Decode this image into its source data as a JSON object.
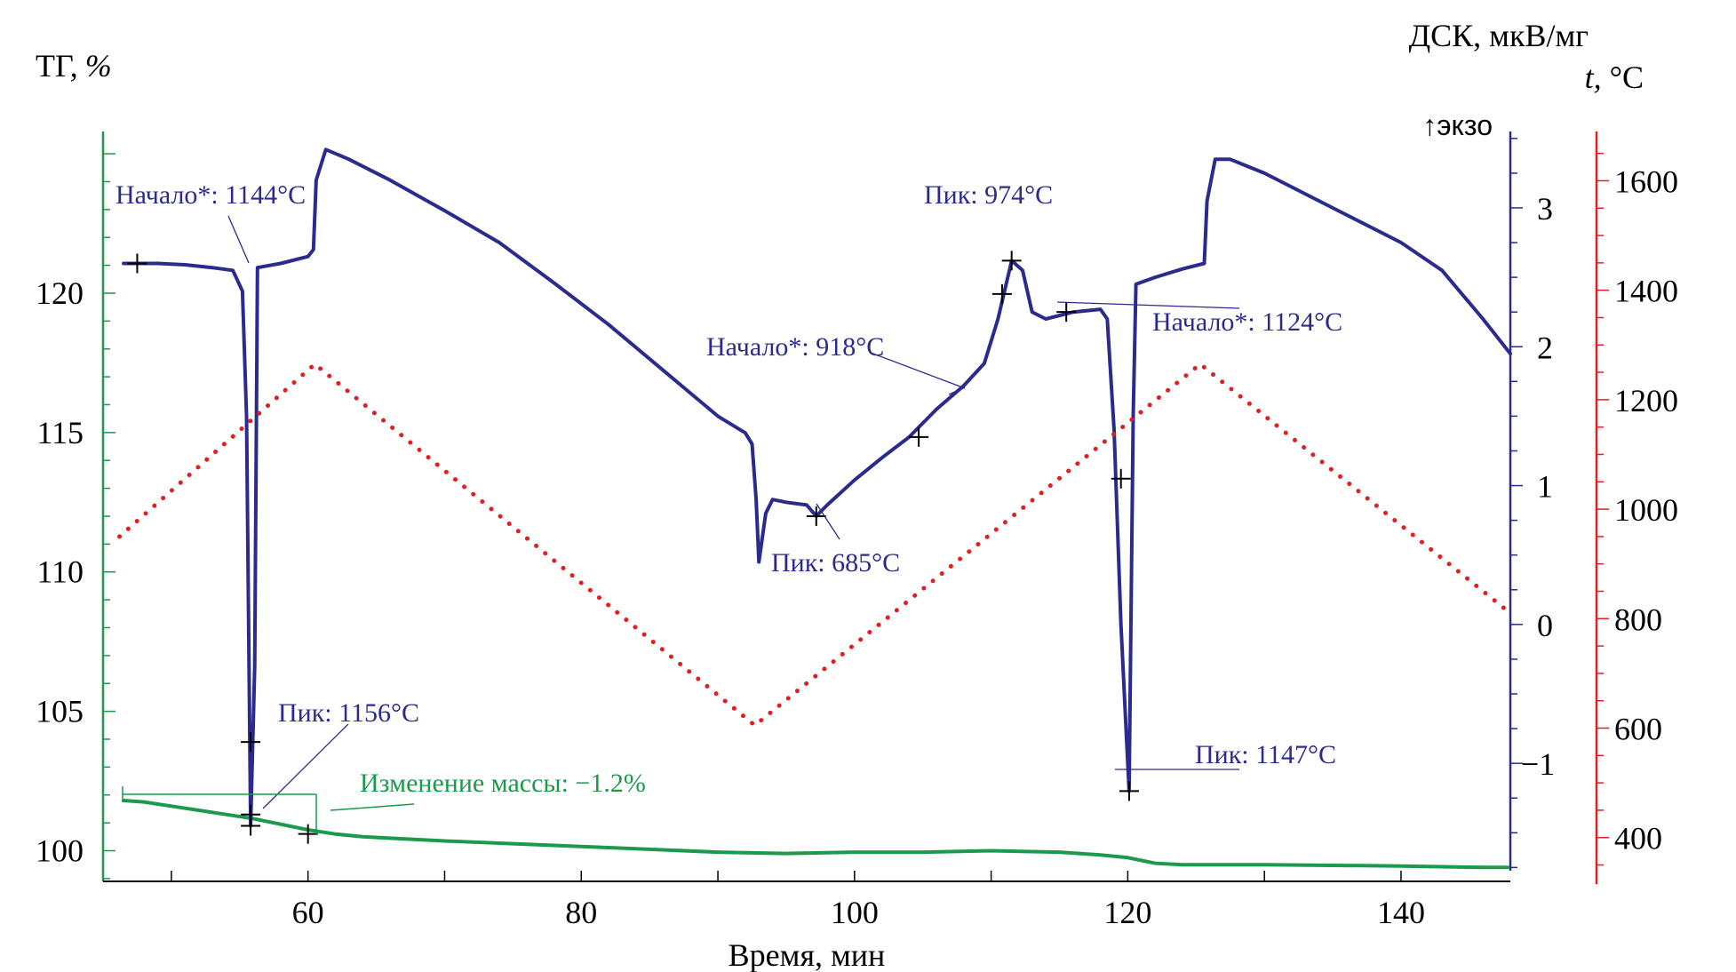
{
  "chart_data": {
    "type": "line",
    "x_axis": {
      "label": "Время, мин",
      "range": [
        45,
        148
      ],
      "ticks": [
        60,
        80,
        100,
        120,
        140
      ],
      "tick_labels": [
        "60",
        "80",
        "100",
        "120",
        "140"
      ],
      "minor_ticks": [
        50,
        60,
        70,
        80,
        90,
        100,
        110,
        120,
        130,
        140
      ]
    },
    "y_axes": {
      "tg": {
        "label_main": "ТГ,",
        "label_unit": "%",
        "color": "#1a9a4a",
        "range": [
          98.9,
          125.8
        ],
        "ticks": [
          100,
          105,
          110,
          115,
          120
        ],
        "tick_labels": [
          "100",
          "105",
          "110",
          "115",
          "120"
        ]
      },
      "dsc": {
        "label": "ДСК, мкВ/мг",
        "exo_label": "↑экзо",
        "color": "#2b2b8e",
        "range": [
          -1.85,
          3.55
        ],
        "ticks": [
          -1,
          0,
          1,
          2,
          3
        ],
        "tick_labels": [
          "−1",
          "0",
          "1",
          "2",
          "3"
        ]
      },
      "temp": {
        "label_italic": "t,",
        "label_unit": " °C",
        "color": "#e02020",
        "range": [
          320,
          1690
        ],
        "ticks": [
          400,
          600,
          800,
          1000,
          1200,
          1400,
          1600
        ],
        "tick_labels": [
          "400",
          "600",
          "800",
          "1000",
          "1200",
          "1400",
          "1600"
        ]
      }
    },
    "series": [
      {
        "name": "ТГ",
        "axis": "tg",
        "color": "#1a9a4a",
        "points": [
          [
            46.5,
            101.8
          ],
          [
            48,
            101.75
          ],
          [
            50,
            101.6
          ],
          [
            52,
            101.45
          ],
          [
            54,
            101.3
          ],
          [
            56,
            101.15
          ],
          [
            58,
            100.95
          ],
          [
            60,
            100.75
          ],
          [
            62,
            100.6
          ],
          [
            64,
            100.5
          ],
          [
            66,
            100.45
          ],
          [
            70,
            100.35
          ],
          [
            75,
            100.25
          ],
          [
            80,
            100.15
          ],
          [
            85,
            100.05
          ],
          [
            90,
            99.95
          ],
          [
            95,
            99.9
          ],
          [
            100,
            99.95
          ],
          [
            105,
            99.95
          ],
          [
            110,
            100.0
          ],
          [
            115,
            99.95
          ],
          [
            118,
            99.85
          ],
          [
            120,
            99.75
          ],
          [
            122,
            99.55
          ],
          [
            124,
            99.5
          ],
          [
            130,
            99.5
          ],
          [
            140,
            99.45
          ],
          [
            146,
            99.4
          ],
          [
            147.8,
            99.4
          ]
        ]
      },
      {
        "name": "ДСК",
        "axis": "dsc",
        "color": "#2b2b8e",
        "points": [
          [
            46.5,
            2.6
          ],
          [
            49,
            2.6
          ],
          [
            51,
            2.59
          ],
          [
            53,
            2.57
          ],
          [
            54.5,
            2.55
          ],
          [
            55.2,
            2.4
          ],
          [
            55.5,
            1.5
          ],
          [
            55.8,
            -1.45
          ],
          [
            56.1,
            -0.3
          ],
          [
            56.3,
            2.57
          ],
          [
            58,
            2.6
          ],
          [
            60,
            2.65
          ],
          [
            60.4,
            2.7
          ],
          [
            60.6,
            3.2
          ],
          [
            61.3,
            3.42
          ],
          [
            63,
            3.35
          ],
          [
            66,
            3.2
          ],
          [
            70,
            2.98
          ],
          [
            74,
            2.75
          ],
          [
            78,
            2.46
          ],
          [
            82,
            2.16
          ],
          [
            86,
            1.83
          ],
          [
            90,
            1.5
          ],
          [
            92,
            1.38
          ],
          [
            92.5,
            1.3
          ],
          [
            92.8,
            0.9
          ],
          [
            93,
            0.45
          ],
          [
            93.5,
            0.8
          ],
          [
            94,
            0.9
          ],
          [
            95,
            0.88
          ],
          [
            96.5,
            0.86
          ],
          [
            97.2,
            0.78
          ],
          [
            98,
            0.86
          ],
          [
            100,
            1.04
          ],
          [
            102,
            1.2
          ],
          [
            104,
            1.35
          ],
          [
            106,
            1.55
          ],
          [
            108,
            1.72
          ],
          [
            109.5,
            1.88
          ],
          [
            110.5,
            2.2
          ],
          [
            111.5,
            2.62
          ],
          [
            112.3,
            2.55
          ],
          [
            113,
            2.25
          ],
          [
            114,
            2.2
          ],
          [
            116,
            2.25
          ],
          [
            118,
            2.27
          ],
          [
            118.5,
            2.2
          ],
          [
            119,
            1.4
          ],
          [
            119.5,
            0.0
          ],
          [
            120.1,
            -1.2
          ],
          [
            120.4,
            1.5
          ],
          [
            120.6,
            2.45
          ],
          [
            122,
            2.5
          ],
          [
            124,
            2.56
          ],
          [
            125.6,
            2.6
          ],
          [
            125.8,
            3.05
          ],
          [
            126.4,
            3.35
          ],
          [
            127.5,
            3.35
          ],
          [
            130,
            3.25
          ],
          [
            135,
            3.0
          ],
          [
            140,
            2.75
          ],
          [
            143,
            2.55
          ],
          [
            146,
            2.2
          ],
          [
            148,
            1.95
          ]
        ]
      },
      {
        "name": "t",
        "axis": "temp",
        "color": "#e02020",
        "style": "dotted",
        "points": [
          [
            46.2,
            950
          ],
          [
            60.5,
            1265
          ],
          [
            92.7,
            605
          ],
          [
            125.3,
            1265
          ],
          [
            148,
            810
          ]
        ]
      }
    ],
    "annotations": {
      "onset1": "Начало*: 1144°C",
      "peak_974": "Пик: 974°C",
      "onset918": "Начало*: 918°C",
      "onset1124": "Начало*: 1124°C",
      "peak685": "Пик: 685°C",
      "peak1156": "Пик: 1156°C",
      "mass_change": "Изменение массы: −1.2%",
      "peak1147": "Пик: 1147°C"
    },
    "markers": [
      [
        47.5,
        2.6
      ],
      [
        55.8,
        -1.45
      ],
      [
        97.2,
        0.78
      ],
      [
        104.7,
        1.35
      ],
      [
        110.8,
        2.38
      ],
      [
        111.5,
        2.62
      ],
      [
        115.5,
        2.25
      ],
      [
        119.5,
        1.05
      ],
      [
        120.1,
        -1.2
      ]
    ],
    "tg_markers": [
      [
        55.8,
        103.9
      ],
      [
        55.8,
        101.3
      ],
      [
        60,
        100.6
      ]
    ],
    "grid": false,
    "legend": "none"
  }
}
